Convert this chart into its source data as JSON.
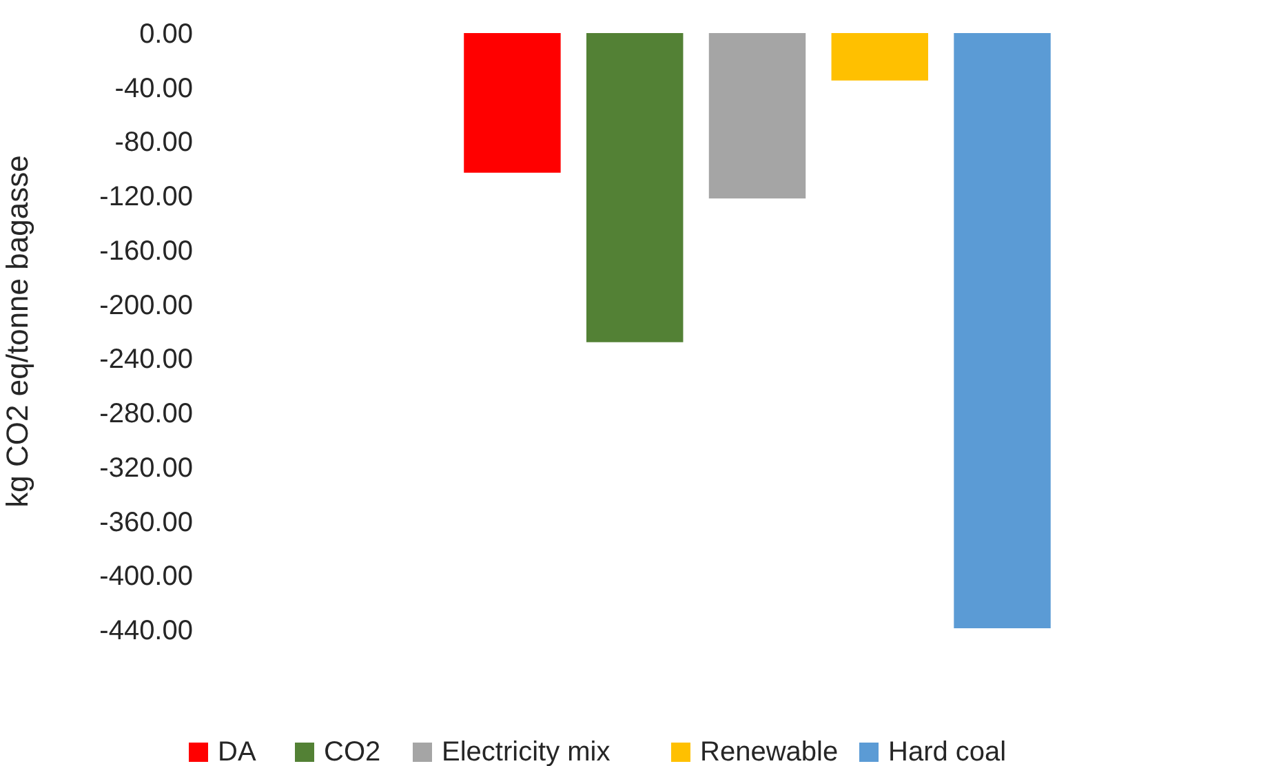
{
  "chart_data": {
    "type": "bar",
    "ylabel": "kg CO2 eq/tonne bagasse",
    "categories": [
      null
    ],
    "series": [
      {
        "name": "DA",
        "color": "#ff0000",
        "values": [
          -103
        ]
      },
      {
        "name": "CO2",
        "color": "#538135",
        "values": [
          -228
        ]
      },
      {
        "name": "Electricity mix",
        "color": "#a5a5a5",
        "values": [
          -122
        ]
      },
      {
        "name": "Renewable",
        "color": "#ffc000",
        "values": [
          -35
        ]
      },
      {
        "name": "Hard coal",
        "color": "#5b9bd5",
        "values": [
          -439
        ]
      }
    ],
    "ylim": [
      -440,
      0
    ],
    "yticks": [
      {
        "value": 0,
        "label": "0.00"
      },
      {
        "value": -40,
        "label": "-40.00"
      },
      {
        "value": -80,
        "label": "-80.00"
      },
      {
        "value": -120,
        "label": "-120.00"
      },
      {
        "value": -160,
        "label": "-160.00"
      },
      {
        "value": -200,
        "label": "-200.00"
      },
      {
        "value": -240,
        "label": "-240.00"
      },
      {
        "value": -280,
        "label": "-280.00"
      },
      {
        "value": -320,
        "label": "-320.00"
      },
      {
        "value": -360,
        "label": "-360.00"
      },
      {
        "value": -400,
        "label": "-400.00"
      },
      {
        "value": -440,
        "label": "-440.00"
      }
    ],
    "grid": false,
    "legend": "bottom"
  }
}
